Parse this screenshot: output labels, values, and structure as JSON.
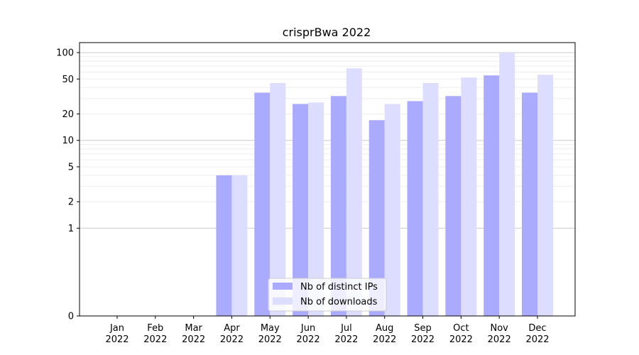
{
  "chart_data": {
    "type": "bar",
    "title": "crisprBwa 2022",
    "xlabel": "",
    "ylabel": "",
    "yscale": "symlog",
    "ylim": [
      0,
      130
    ],
    "yticks": [
      "0",
      "1",
      "2",
      "5",
      "10",
      "20",
      "50",
      "100"
    ],
    "grid": "horizontal",
    "legend_position": "lower-center",
    "categories": [
      [
        "Jan",
        "2022"
      ],
      [
        "Feb",
        "2022"
      ],
      [
        "Mar",
        "2022"
      ],
      [
        "Apr",
        "2022"
      ],
      [
        "May",
        "2022"
      ],
      [
        "Jun",
        "2022"
      ],
      [
        "Jul",
        "2022"
      ],
      [
        "Aug",
        "2022"
      ],
      [
        "Sep",
        "2022"
      ],
      [
        "Oct",
        "2022"
      ],
      [
        "Nov",
        "2022"
      ],
      [
        "Dec",
        "2022"
      ]
    ],
    "series": [
      {
        "name": "Nb of distinct IPs",
        "color": "#aaaaff",
        "values": [
          0,
          0,
          0,
          4,
          35,
          26,
          32,
          17,
          28,
          32,
          55,
          35
        ]
      },
      {
        "name": "Nb of downloads",
        "color": "#ddddff",
        "values": [
          0,
          0,
          0,
          4,
          45,
          27,
          66,
          26,
          45,
          52,
          100,
          56
        ]
      }
    ]
  }
}
